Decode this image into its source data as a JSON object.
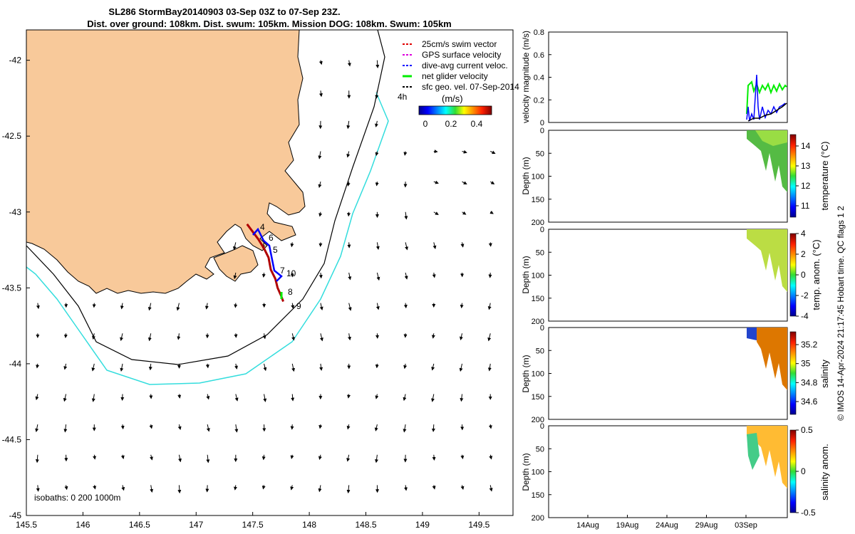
{
  "title": {
    "line1": "SL286 StormBay20140903 03-Sep 03Z to 07-Sep 23Z.",
    "line2": "Dist. over ground: 108km. Dist. swum: 105km. Mission DOG: 108km. Swum: 105km"
  },
  "colors": {
    "land": "#f8c99a",
    "isobath_200": "#000000",
    "isobath_1000": "#33dddd",
    "track": "#b00000",
    "dive_avg": "#0000ff",
    "net_velocity": "#00ee00",
    "sfc_geo": "#000000"
  },
  "legend": {
    "items": [
      {
        "label": "25cm/s swim vector",
        "color": "#e00000"
      },
      {
        "label": "GPS surface velocity",
        "color": "#dd00dd"
      },
      {
        "label": "dive-avg current veloc.",
        "color": "#0000ff"
      },
      {
        "label": "net glider velocity",
        "color": "#00ee00"
      },
      {
        "label": "sfc geo. vel. 07-Sep-2014",
        "color": "#000000"
      }
    ],
    "offset_label": "4h",
    "colorbar_title": "(m/s)",
    "colorbar_ticks": [
      "0",
      "0.2",
      "0.4"
    ]
  },
  "isobath_note": "isobaths: 0   200  1000m",
  "footer_note": "© IMOS 14-Apr-2024 21:17:45 Hobart time. QC flags 1  2",
  "chart_data": [
    {
      "type": "scatter",
      "name": "map",
      "xlim": [
        145.5,
        149.8
      ],
      "ylim": [
        -45,
        -41.8
      ],
      "x_ticks": [
        "145.5",
        "146",
        "146.5",
        "147",
        "147.5",
        "148",
        "148.5",
        "149",
        "149.5"
      ],
      "y_ticks": [
        "-42",
        "-42.5",
        "-43",
        "-43.5",
        "-44",
        "-44.5",
        "-45"
      ],
      "track": [
        [
          147.45,
          -43.08
        ],
        [
          147.5,
          -43.13
        ],
        [
          147.55,
          -43.18
        ],
        [
          147.6,
          -43.24
        ],
        [
          147.64,
          -43.3
        ],
        [
          147.66,
          -43.38
        ],
        [
          147.7,
          -43.44
        ],
        [
          147.72,
          -43.5
        ],
        [
          147.75,
          -43.55
        ],
        [
          147.77,
          -43.59
        ]
      ],
      "waypoint_labels": [
        "4",
        "6",
        "5",
        "7",
        "10",
        "8",
        "9"
      ],
      "grid_lon_start": 145.6,
      "grid_lon_step": 0.25,
      "grid_lat_start": -42.0,
      "grid_lat_step": -0.2
    },
    {
      "type": "line",
      "name": "velocity",
      "ylabel": "velocity magnitude (m/s)",
      "ylim": [
        0,
        0.8
      ],
      "y_ticks": [
        "0",
        "0.2",
        "0.4",
        "0.6",
        "0.8"
      ]
    },
    {
      "type": "heatmap",
      "name": "temperature",
      "ylabel": "Depth (m)",
      "colorbar_label": "temperature (°C)",
      "colorbar_ticks": [
        "11",
        "12",
        "13",
        "14"
      ],
      "y_ticks": [
        "0",
        "50",
        "100",
        "150",
        "200"
      ]
    },
    {
      "type": "heatmap",
      "name": "temp_anom",
      "ylabel": "Depth (m)",
      "colorbar_label": "temp. anom. (°C)",
      "colorbar_ticks": [
        "-4",
        "-2",
        "0",
        "2",
        "4"
      ],
      "y_ticks": [
        "0",
        "50",
        "100",
        "150",
        "200"
      ]
    },
    {
      "type": "heatmap",
      "name": "salinity",
      "ylabel": "Depth (m)",
      "colorbar_label": "salinity",
      "colorbar_ticks": [
        "34.6",
        "34.8",
        "35",
        "35.2"
      ],
      "y_ticks": [
        "0",
        "50",
        "100",
        "150",
        "200"
      ]
    },
    {
      "type": "heatmap",
      "name": "sal_anom",
      "ylabel": "Depth (m)",
      "colorbar_label": "salinity anom.",
      "colorbar_ticks": [
        "-0.5",
        "0",
        "0.5"
      ],
      "y_ticks": [
        "0",
        "50",
        "100",
        "150",
        "200"
      ],
      "x_ticks": [
        "14Aug",
        "19Aug",
        "24Aug",
        "29Aug",
        "03Sep"
      ]
    }
  ]
}
